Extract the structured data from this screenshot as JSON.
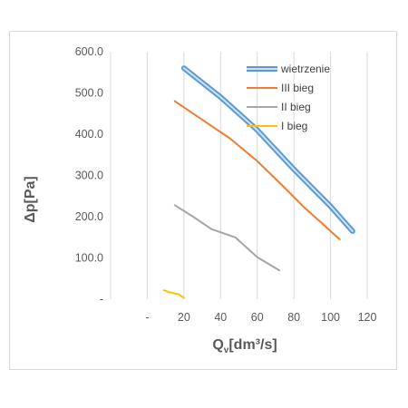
{
  "chart_data": {
    "type": "line",
    "xlabel": "Q",
    "xlabel_sub": "v",
    "xlabel_unit": "[dm³/s]",
    "ylabel": "Δp[Pa]",
    "xlim": [
      -20,
      120
    ],
    "ylim": [
      0,
      600
    ],
    "x_ticks": [
      0,
      20,
      40,
      60,
      80,
      100,
      120
    ],
    "x_tick_labels": [
      "-",
      "20",
      "40",
      "60",
      "80",
      "100",
      "120"
    ],
    "y_ticks": [
      0,
      100,
      200,
      300,
      400,
      500,
      600
    ],
    "y_tick_labels": [
      "-",
      "100.0",
      "200.0",
      "300.0",
      "400.0",
      "500.0",
      "600.0"
    ],
    "grid": "vertical",
    "legend_position": "top-right",
    "series": [
      {
        "name": "wietrzenie",
        "color": "#5b9bd5",
        "style": "double",
        "x": [
          20,
          40,
          60,
          80,
          100,
          112
        ],
        "y": [
          560,
          490,
          410,
          315,
          225,
          165
        ]
      },
      {
        "name": "III bieg",
        "color": "#ed7d31",
        "x": [
          15,
          30,
          45,
          60,
          75,
          85,
          95,
          105
        ],
        "y": [
          480,
          435,
          390,
          335,
          270,
          225,
          185,
          145
        ]
      },
      {
        "name": "II bieg",
        "color": "#a5a5a5",
        "x": [
          15,
          25,
          35,
          48,
          60,
          72
        ],
        "y": [
          228,
          200,
          170,
          150,
          102,
          70
        ]
      },
      {
        "name": "I bieg",
        "color": "#ffc000",
        "x": [
          9,
          12,
          17,
          20
        ],
        "y": [
          22,
          17,
          12,
          3
        ]
      }
    ]
  }
}
